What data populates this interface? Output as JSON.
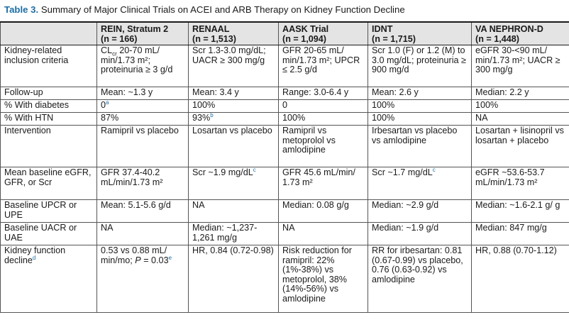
{
  "caption": {
    "label": "Table 3.",
    "text": "Summary of Major Clinical Trials on ACEI and ARB Therapy on Kidney Function Decline"
  },
  "columns": [
    {
      "name": "",
      "n": ""
    },
    {
      "name": "REIN, Stratum 2",
      "n": "(n = 166)"
    },
    {
      "name": "RENAAL",
      "n": "(n = 1,513)"
    },
    {
      "name": "AASK Trial",
      "n": "(n = 1,094)"
    },
    {
      "name": "IDNT",
      "n": "(n = 1,715)"
    },
    {
      "name": "VA NEPHRON-D",
      "n": "(n = 1,448)"
    }
  ],
  "rows": {
    "inclusion": {
      "label": "Kidney-related inclusion criteria",
      "rein_a": "CL",
      "rein_sub": "cr",
      "rein_b": " 20-70 mL/ min/1.73 m²; proteinuria ≥ 3 g/d",
      "renaal": "Scr 1.3-3.0 mg/dL; UACR ≥ 300 mg/g",
      "aask": "GFR 20-65 mL/ min/1.73 m²; UPCR ≤ 2.5 g/d",
      "idnt": "Scr 1.0 (F) or 1.2 (M) to 3.0 mg/dL; proteinuria ≥ 900 mg/d",
      "va": "eGFR 30-<90 mL/ min/1.73 m²; UACR ≥ 300 mg/g"
    },
    "followup": {
      "label": "Follow-up",
      "rein": "Mean: ~1.3 y",
      "renaal": "Mean: 3.4 y",
      "aask": "Range: 3.0-6.4 y",
      "idnt": "Mean: 2.6 y",
      "va": "Median: 2.2 y"
    },
    "diabetes": {
      "label": "% With diabetes",
      "rein": "0",
      "rein_sup": "a",
      "renaal": "100%",
      "aask": "0",
      "idnt": "100%",
      "va": "100%"
    },
    "htn": {
      "label": "% With HTN",
      "rein": "87%",
      "renaal": "93%",
      "renaal_sup": "b",
      "aask": "100%",
      "idnt": "100%",
      "va": "NA"
    },
    "intervention": {
      "label": "Intervention",
      "rein": "Ramipril vs placebo",
      "renaal": "Losartan vs placebo",
      "aask": "Ramipril vs metoprolol vs amlodipine",
      "idnt": "Irbesartan vs placebo vs amlodipine",
      "va": "Losartan + lisinopril vs losartan + placebo"
    },
    "baseline_egfr": {
      "label": "Mean baseline eGFR, GFR, or Scr",
      "rein": "GFR 37.4-40.2 mL/min/1.73 m²",
      "renaal": "Scr ~1.9 mg/dL",
      "renaal_sup": "c",
      "aask": "GFR 45.6 mL/min/ 1.73 m²",
      "idnt": "Scr ~1.7 mg/dL",
      "idnt_sup": "c",
      "va": "eGFR ~53.6-53.7 mL/min/1.73 m²"
    },
    "upcr": {
      "label": "Baseline UPCR or UPE",
      "rein": "Mean: 5.1-5.6 g/d",
      "renaal": "NA",
      "aask": "Median: 0.08 g/g",
      "idnt": "Median: ~2.9 g/d",
      "va": "Median: ~1.6-2.1 g/ g"
    },
    "uacr": {
      "label": "Baseline UACR or UAE",
      "rein": "NA",
      "renaal": "Median: ~1,237-1,261 mg/g",
      "aask": "NA",
      "idnt": "Median: ~1.9 g/d",
      "va": "Median: 847 mg/g"
    },
    "decline": {
      "label": "Kidney function decline",
      "label_sup": "d",
      "rein_a": "0.53 vs 0.88 mL/ min/mo; ",
      "rein_p": "P",
      "rein_b": " = 0.03",
      "rein_sup": "e",
      "renaal": "HR, 0.84 (0.72-0.98)",
      "aask": "Risk reduction for ramipril: 22% (1%-38%) vs metoprolol, 38% (14%-56%) vs amlodipine",
      "idnt": "RR for irbesartan: 0.81 (0.67-0.99) vs placebo, 0.76 (0.63-0.92) vs amlodipine",
      "va": "HR, 0.88 (0.70-1.12)"
    }
  }
}
